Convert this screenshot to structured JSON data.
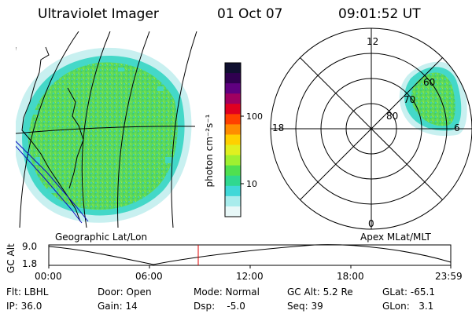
{
  "header": {
    "title": "Ultraviolet Imager",
    "date": "01 Oct 07",
    "time": "09:01:52 UT"
  },
  "left_panel": {
    "label": "Geographic Lat/Lon"
  },
  "colorbar": {
    "unit_label": "photon cm⁻²s⁻¹",
    "ticks": [
      "100",
      "10"
    ],
    "colors": [
      "#101030",
      "#300050",
      "#600080",
      "#a00060",
      "#e00020",
      "#ff4000",
      "#ff8c00",
      "#ffd000",
      "#e0f020",
      "#a0f030",
      "#50e050",
      "#30d890",
      "#40d8d8",
      "#a8ecec",
      "#e8f8f8"
    ]
  },
  "polar_panel": {
    "label": "Apex MLat/MLT",
    "mlt_labels": {
      "top": "12",
      "left": "18",
      "right": "6",
      "bottom": "0"
    },
    "lat_labels": [
      "60",
      "70",
      "80"
    ]
  },
  "altitude_plot": {
    "ylabel": "GC Alt",
    "ytick_top": "9.0",
    "ytick_bottom": "1.8",
    "xticks": [
      "00:00",
      "06:00",
      "12:00",
      "18:00",
      "23:59"
    ]
  },
  "info": {
    "flt": "Flt: LBHL",
    "door": "Door: Open",
    "mode": "Mode: Normal",
    "gc_alt": "GC Alt: 5.2 Re",
    "glat": "GLat: -65.1",
    "ip": "IP: 36.0",
    "gain": "Gain: 14",
    "dsp": "Dsp:    -5.0",
    "seq": "Seq: 39",
    "glon": "GLon:   3.1"
  },
  "colors": {
    "aurora_green": "#58d858",
    "aurora_cyan": "#40d8c8",
    "edge_pale": "#c8f0f0",
    "time_marker": "#e00000",
    "coast_blue": "#1010c0"
  }
}
